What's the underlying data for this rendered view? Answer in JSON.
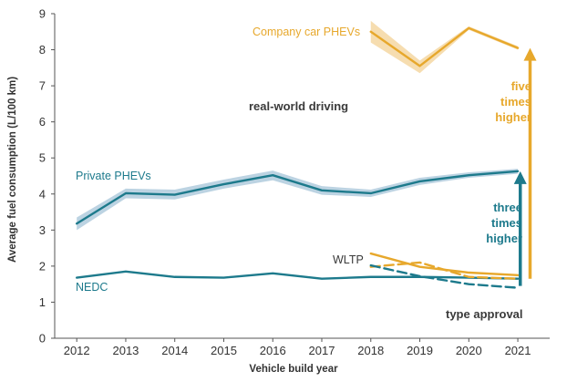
{
  "chart_data": {
    "type": "line",
    "xlabel": "Vehicle build year",
    "ylabel": "Average fuel consumption (L/100 km)",
    "xlim": [
      2011.55,
      2021.65
    ],
    "ylim": [
      0,
      9
    ],
    "x_ticks": [
      2012,
      2013,
      2014,
      2015,
      2016,
      2017,
      2018,
      2019,
      2020,
      2021
    ],
    "y_ticks": [
      0,
      1,
      2,
      3,
      4,
      5,
      6,
      7,
      8,
      9
    ],
    "grid": false,
    "colors": {
      "company": "#e7a82c",
      "company_band": "#f6ddb0",
      "private": "#1d7a8c",
      "private_band": "#bcd3e2",
      "axis": "#555555",
      "text_dark": "#3a3a3a"
    },
    "series": [
      {
        "name": "Company car PHEVs",
        "style": "solid",
        "color": "#e7a82c",
        "x": [
          2018,
          2019,
          2020,
          2021
        ],
        "values": [
          8.5,
          7.55,
          8.6,
          8.05
        ],
        "band_upper": [
          8.8,
          7.7,
          8.65,
          8.1
        ],
        "band_lower": [
          8.2,
          7.35,
          8.55,
          8.0
        ]
      },
      {
        "name": "Private PHEVs",
        "style": "solid",
        "color": "#1d7a8c",
        "x": [
          2012,
          2013,
          2014,
          2015,
          2016,
          2017,
          2018,
          2019,
          2020,
          2021
        ],
        "values": [
          3.18,
          4.02,
          3.98,
          4.27,
          4.52,
          4.1,
          4.02,
          4.35,
          4.52,
          4.63
        ],
        "band_upper": [
          3.35,
          4.15,
          4.12,
          4.4,
          4.65,
          4.22,
          4.12,
          4.45,
          4.6,
          4.7
        ],
        "band_lower": [
          3.0,
          3.88,
          3.85,
          4.15,
          4.38,
          3.98,
          3.92,
          4.25,
          4.45,
          4.56
        ]
      },
      {
        "name": "NEDC",
        "style": "solid",
        "color": "#1d7a8c",
        "x": [
          2012,
          2013,
          2014,
          2015,
          2016,
          2017,
          2018,
          2019,
          2020,
          2021
        ],
        "values": [
          1.68,
          1.85,
          1.7,
          1.68,
          1.8,
          1.65,
          1.7,
          1.7,
          1.68,
          1.65
        ]
      },
      {
        "name": "WLTP company",
        "style": "solid",
        "color": "#e7a82c",
        "x": [
          2018,
          2019,
          2020,
          2021
        ],
        "values": [
          2.35,
          1.98,
          1.82,
          1.75
        ]
      },
      {
        "name": "WLTP company dashed",
        "style": "dashed",
        "color": "#e7a82c",
        "x": [
          2018,
          2019,
          2020,
          2021
        ],
        "values": [
          1.98,
          2.1,
          1.7,
          1.65
        ]
      },
      {
        "name": "WLTP private",
        "style": "dashed",
        "color": "#1d7a8c",
        "x": [
          2018,
          2019,
          2020,
          2021
        ],
        "values": [
          2.02,
          1.72,
          1.5,
          1.4
        ]
      }
    ],
    "labels": {
      "company": "Company car PHEVs",
      "private": "Private PHEVs",
      "nedc": "NEDC",
      "wltp": "WLTP",
      "real_world": "real-world driving",
      "type_approval": "type approval",
      "three_times_1": "three",
      "three_times_2": "times",
      "three_times_3": "higher",
      "five_times_1": "five",
      "five_times_2": "times",
      "five_times_3": "higher"
    },
    "arrows": [
      {
        "name": "five-times-arrow",
        "color": "#e7a82c",
        "x": 2021.25,
        "from": 1.65,
        "to": 8.05
      },
      {
        "name": "three-times-arrow",
        "color": "#1d7a8c",
        "x": 2021.05,
        "from": 1.45,
        "to": 4.63
      }
    ]
  }
}
